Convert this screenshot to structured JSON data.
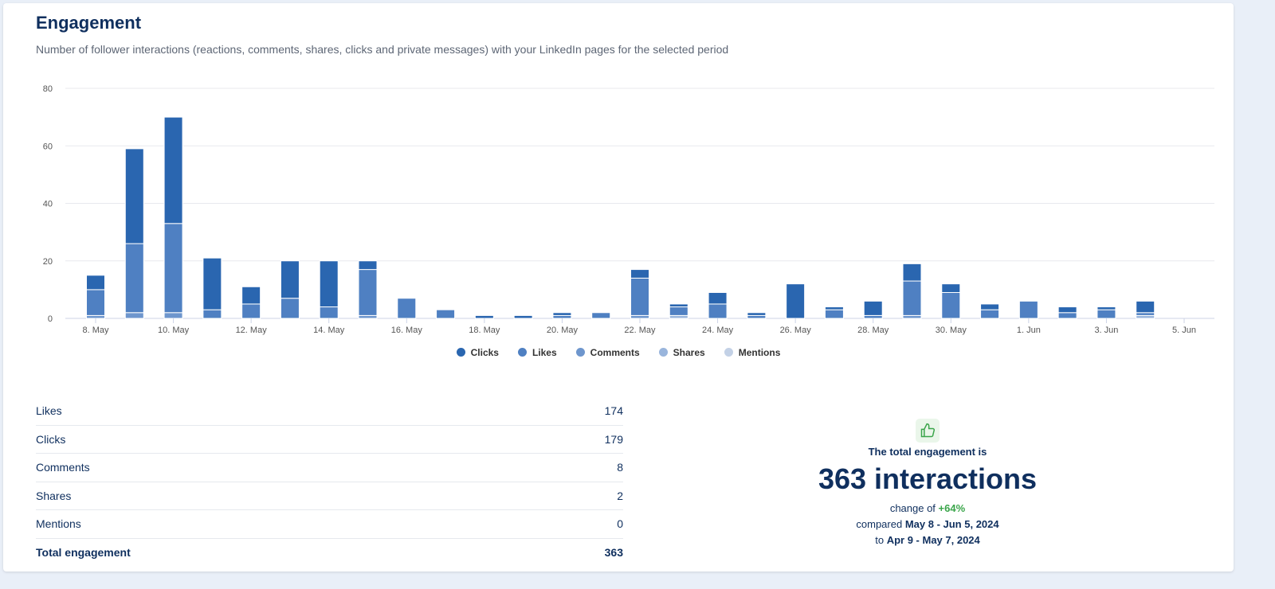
{
  "header": {
    "title": "Engagement",
    "subtitle": "Number of follower interactions (reactions, comments, shares, clicks and private messages) with your LinkedIn pages for the selected period"
  },
  "chart_data": {
    "type": "bar",
    "stacked": true,
    "ylim": [
      0,
      80
    ],
    "yticks": [
      0,
      20,
      40,
      60,
      80
    ],
    "grid": true,
    "legend_position": "bottom",
    "categories": [
      "8. May",
      "9. May",
      "10. May",
      "11. May",
      "12. May",
      "13. May",
      "14. May",
      "15. May",
      "16. May",
      "17. May",
      "18. May",
      "19. May",
      "20. May",
      "21. May",
      "22. May",
      "23. May",
      "24. May",
      "25. May",
      "26. May",
      "27. May",
      "28. May",
      "29. May",
      "30. May",
      "31. May",
      "1. Jun",
      "2. Jun",
      "3. Jun",
      "4. Jun",
      "5. Jun"
    ],
    "xtick_labels": [
      "8. May",
      "10. May",
      "12. May",
      "14. May",
      "16. May",
      "18. May",
      "20. May",
      "22. May",
      "24. May",
      "26. May",
      "28. May",
      "30. May",
      "1. Jun",
      "3. Jun",
      "5. Jun"
    ],
    "series": [
      {
        "name": "Mentions",
        "color": "#c3d1e6",
        "values": [
          0,
          0,
          0,
          0,
          0,
          0,
          0,
          0,
          0,
          0,
          0,
          0,
          0,
          0,
          0,
          0,
          0,
          0,
          0,
          0,
          0,
          0,
          0,
          0,
          0,
          0,
          0,
          0,
          0
        ]
      },
      {
        "name": "Shares",
        "color": "#99b5dc",
        "values": [
          0,
          0,
          0,
          0,
          0,
          0,
          0,
          0,
          0,
          0,
          0,
          0,
          0,
          0,
          0,
          1,
          0,
          0,
          0,
          0,
          0,
          0,
          0,
          0,
          0,
          0,
          0,
          1,
          0
        ]
      },
      {
        "name": "Comments",
        "color": "#6e96cd",
        "values": [
          1,
          2,
          2,
          0,
          0,
          0,
          0,
          1,
          0,
          0,
          0,
          0,
          0,
          0,
          1,
          0,
          0,
          0,
          0,
          0,
          0,
          1,
          0,
          0,
          0,
          0,
          0,
          0,
          0
        ]
      },
      {
        "name": "Likes",
        "color": "#4f80c2",
        "values": [
          9,
          24,
          31,
          3,
          5,
          7,
          4,
          16,
          7,
          3,
          0,
          0,
          1,
          2,
          13,
          3,
          5,
          1,
          0,
          3,
          1,
          12,
          9,
          3,
          6,
          2,
          3,
          1,
          0
        ]
      },
      {
        "name": "Clicks",
        "color": "#2a66b0",
        "values": [
          5,
          33,
          37,
          18,
          6,
          13,
          16,
          3,
          0,
          0,
          1,
          1,
          1,
          0,
          3,
          1,
          4,
          1,
          12,
          1,
          5,
          6,
          3,
          2,
          0,
          2,
          1,
          4,
          0
        ]
      }
    ]
  },
  "legend": [
    "Clicks",
    "Likes",
    "Comments",
    "Shares",
    "Mentions"
  ],
  "table": [
    {
      "label": "Likes",
      "value": "174"
    },
    {
      "label": "Clicks",
      "value": "179"
    },
    {
      "label": "Comments",
      "value": "8"
    },
    {
      "label": "Shares",
      "value": "2"
    },
    {
      "label": "Mentions",
      "value": "0"
    },
    {
      "label": "Total engagement",
      "value": "363"
    }
  ],
  "summary": {
    "icon": "thumbs-up-icon",
    "lead": "The total engagement is",
    "total": "363 interactions",
    "change_prefix": "change of",
    "change": "+64%",
    "compared_prefix": "compared",
    "current_period": "May 8 - Jun 5, 2024",
    "to_prefix": "to",
    "previous_period": "Apr 9 - May 7, 2024"
  }
}
